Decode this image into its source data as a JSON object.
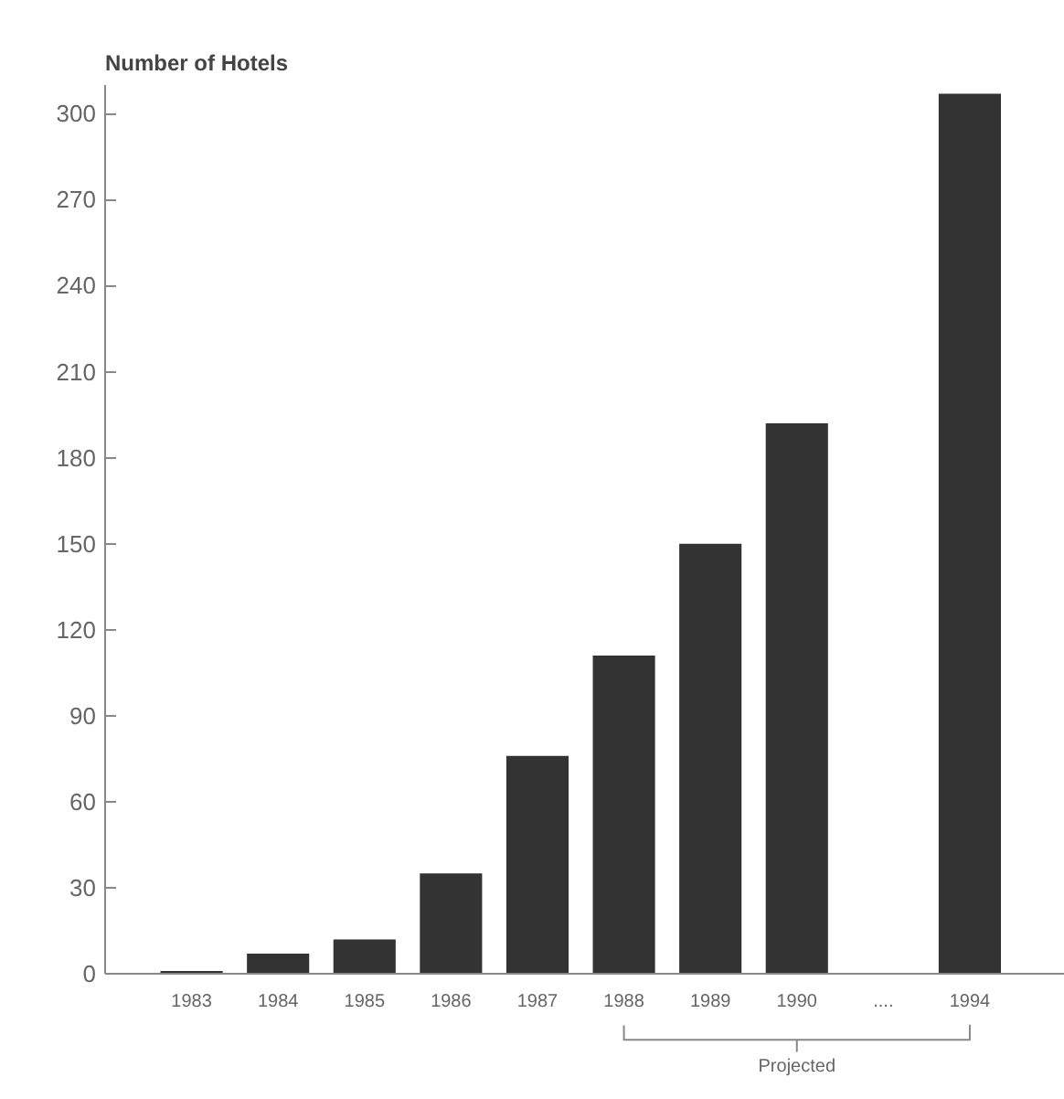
{
  "chart_data": {
    "type": "bar",
    "title": "Number of Hotels",
    "categories": [
      "1983",
      "1984",
      "1985",
      "1986",
      "1987",
      "1988",
      "1989",
      "1990",
      "....",
      "1994"
    ],
    "values": [
      1,
      7,
      12,
      35,
      76,
      111,
      150,
      192,
      null,
      307
    ],
    "color": "#333333",
    "ylim": [
      0,
      310
    ],
    "yticks": [
      0,
      30,
      60,
      90,
      120,
      150,
      180,
      210,
      240,
      270,
      300
    ],
    "annotations": [
      "Projected"
    ],
    "grid": false
  }
}
